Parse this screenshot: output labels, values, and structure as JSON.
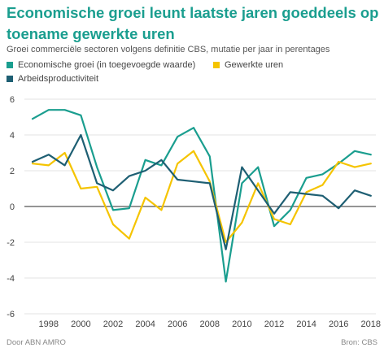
{
  "header": {
    "title": "Economische groei leunt laatste jaren goeddeels op toename gewerkte uren",
    "subtitle": "Groei commerciële sectoren volgens definitie CBS, mutatie per jaar in perentages"
  },
  "footer": {
    "left": "Door ABN AMRO",
    "right": "Bron: CBS"
  },
  "colors": {
    "title": "#1a9e8f",
    "economische_groei": "#1a9e8f",
    "gewerkte_uren": "#f5c400",
    "arbeidsproductiviteit": "#1e5f73",
    "grid": "#e3e3e3",
    "zero_line": "#555555"
  },
  "chart_data": {
    "type": "line",
    "x": [
      1997,
      1998,
      1999,
      2000,
      2001,
      2002,
      2003,
      2004,
      2005,
      2006,
      2007,
      2008,
      2009,
      2010,
      2011,
      2012,
      2013,
      2014,
      2015,
      2016,
      2017,
      2018
    ],
    "x_tick_labels": [
      "1998",
      "2000",
      "2002",
      "2004",
      "2006",
      "2008",
      "2010",
      "2012",
      "2014",
      "2016",
      "2018"
    ],
    "y_tick_labels": [
      "6",
      "4",
      "2",
      "0",
      "-2",
      "-4",
      "-6"
    ],
    "ylim": [
      -6,
      6
    ],
    "xlim": [
      1996.5,
      2018.5
    ],
    "grid": "horizontal",
    "legend_position": "top",
    "series": [
      {
        "name": "Economische groei (in toegevoegde waarde)",
        "color_key": "economische_groei",
        "values": [
          4.9,
          5.4,
          5.4,
          5.1,
          2.2,
          -0.2,
          -0.1,
          2.6,
          2.3,
          3.9,
          4.4,
          2.8,
          -4.2,
          1.3,
          2.2,
          -1.1,
          -0.2,
          1.6,
          1.8,
          2.4,
          3.1,
          2.9
        ]
      },
      {
        "name": "Gewerkte uren",
        "color_key": "gewerkte_uren",
        "values": [
          2.4,
          2.3,
          3.0,
          1.0,
          1.1,
          -1.0,
          -1.8,
          0.5,
          -0.2,
          2.4,
          3.1,
          1.4,
          -2.0,
          -0.9,
          1.3,
          -0.7,
          -1.0,
          0.8,
          1.2,
          2.5,
          2.2,
          2.4
        ]
      },
      {
        "name": "Arbeidsproductiviteit",
        "color_key": "arbeidsproductiviteit",
        "values": [
          2.5,
          2.9,
          2.3,
          4.0,
          1.3,
          0.9,
          1.7,
          2.0,
          2.6,
          1.5,
          1.4,
          1.3,
          -2.4,
          2.2,
          0.9,
          -0.4,
          0.8,
          0.7,
          0.6,
          -0.1,
          0.9,
          0.6
        ]
      }
    ]
  }
}
